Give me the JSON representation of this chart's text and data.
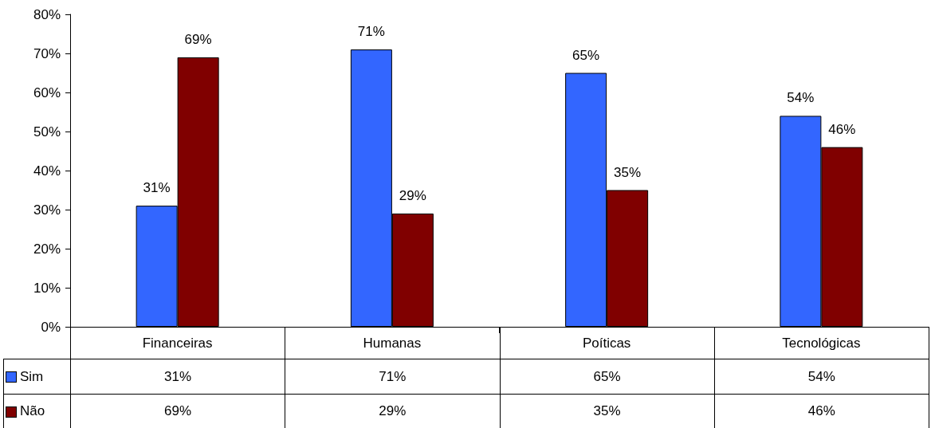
{
  "chart_data": {
    "type": "bar",
    "categories": [
      "Financeiras",
      "Humanas",
      "Poíticas",
      "Tecnológicas"
    ],
    "series": [
      {
        "name": "Sim",
        "color": "#3366ff",
        "values": [
          31,
          71,
          65,
          54
        ],
        "value_labels": [
          "31%",
          "71%",
          "65%",
          "54%"
        ]
      },
      {
        "name": "Não",
        "color": "#800000",
        "values": [
          69,
          29,
          35,
          46
        ],
        "value_labels": [
          "69%",
          "29%",
          "35%",
          "46%"
        ]
      }
    ],
    "ylim": [
      0,
      80
    ],
    "yticks": [
      {
        "value": 0,
        "label": "0%"
      },
      {
        "value": 10,
        "label": "10%"
      },
      {
        "value": 20,
        "label": "20%"
      },
      {
        "value": 30,
        "label": "30%"
      },
      {
        "value": 40,
        "label": "40%"
      },
      {
        "value": 50,
        "label": "50%"
      },
      {
        "value": 60,
        "label": "60%"
      },
      {
        "value": 70,
        "label": "70%"
      },
      {
        "value": 80,
        "label": "80%"
      }
    ],
    "grid": false,
    "legend": "bottom"
  }
}
